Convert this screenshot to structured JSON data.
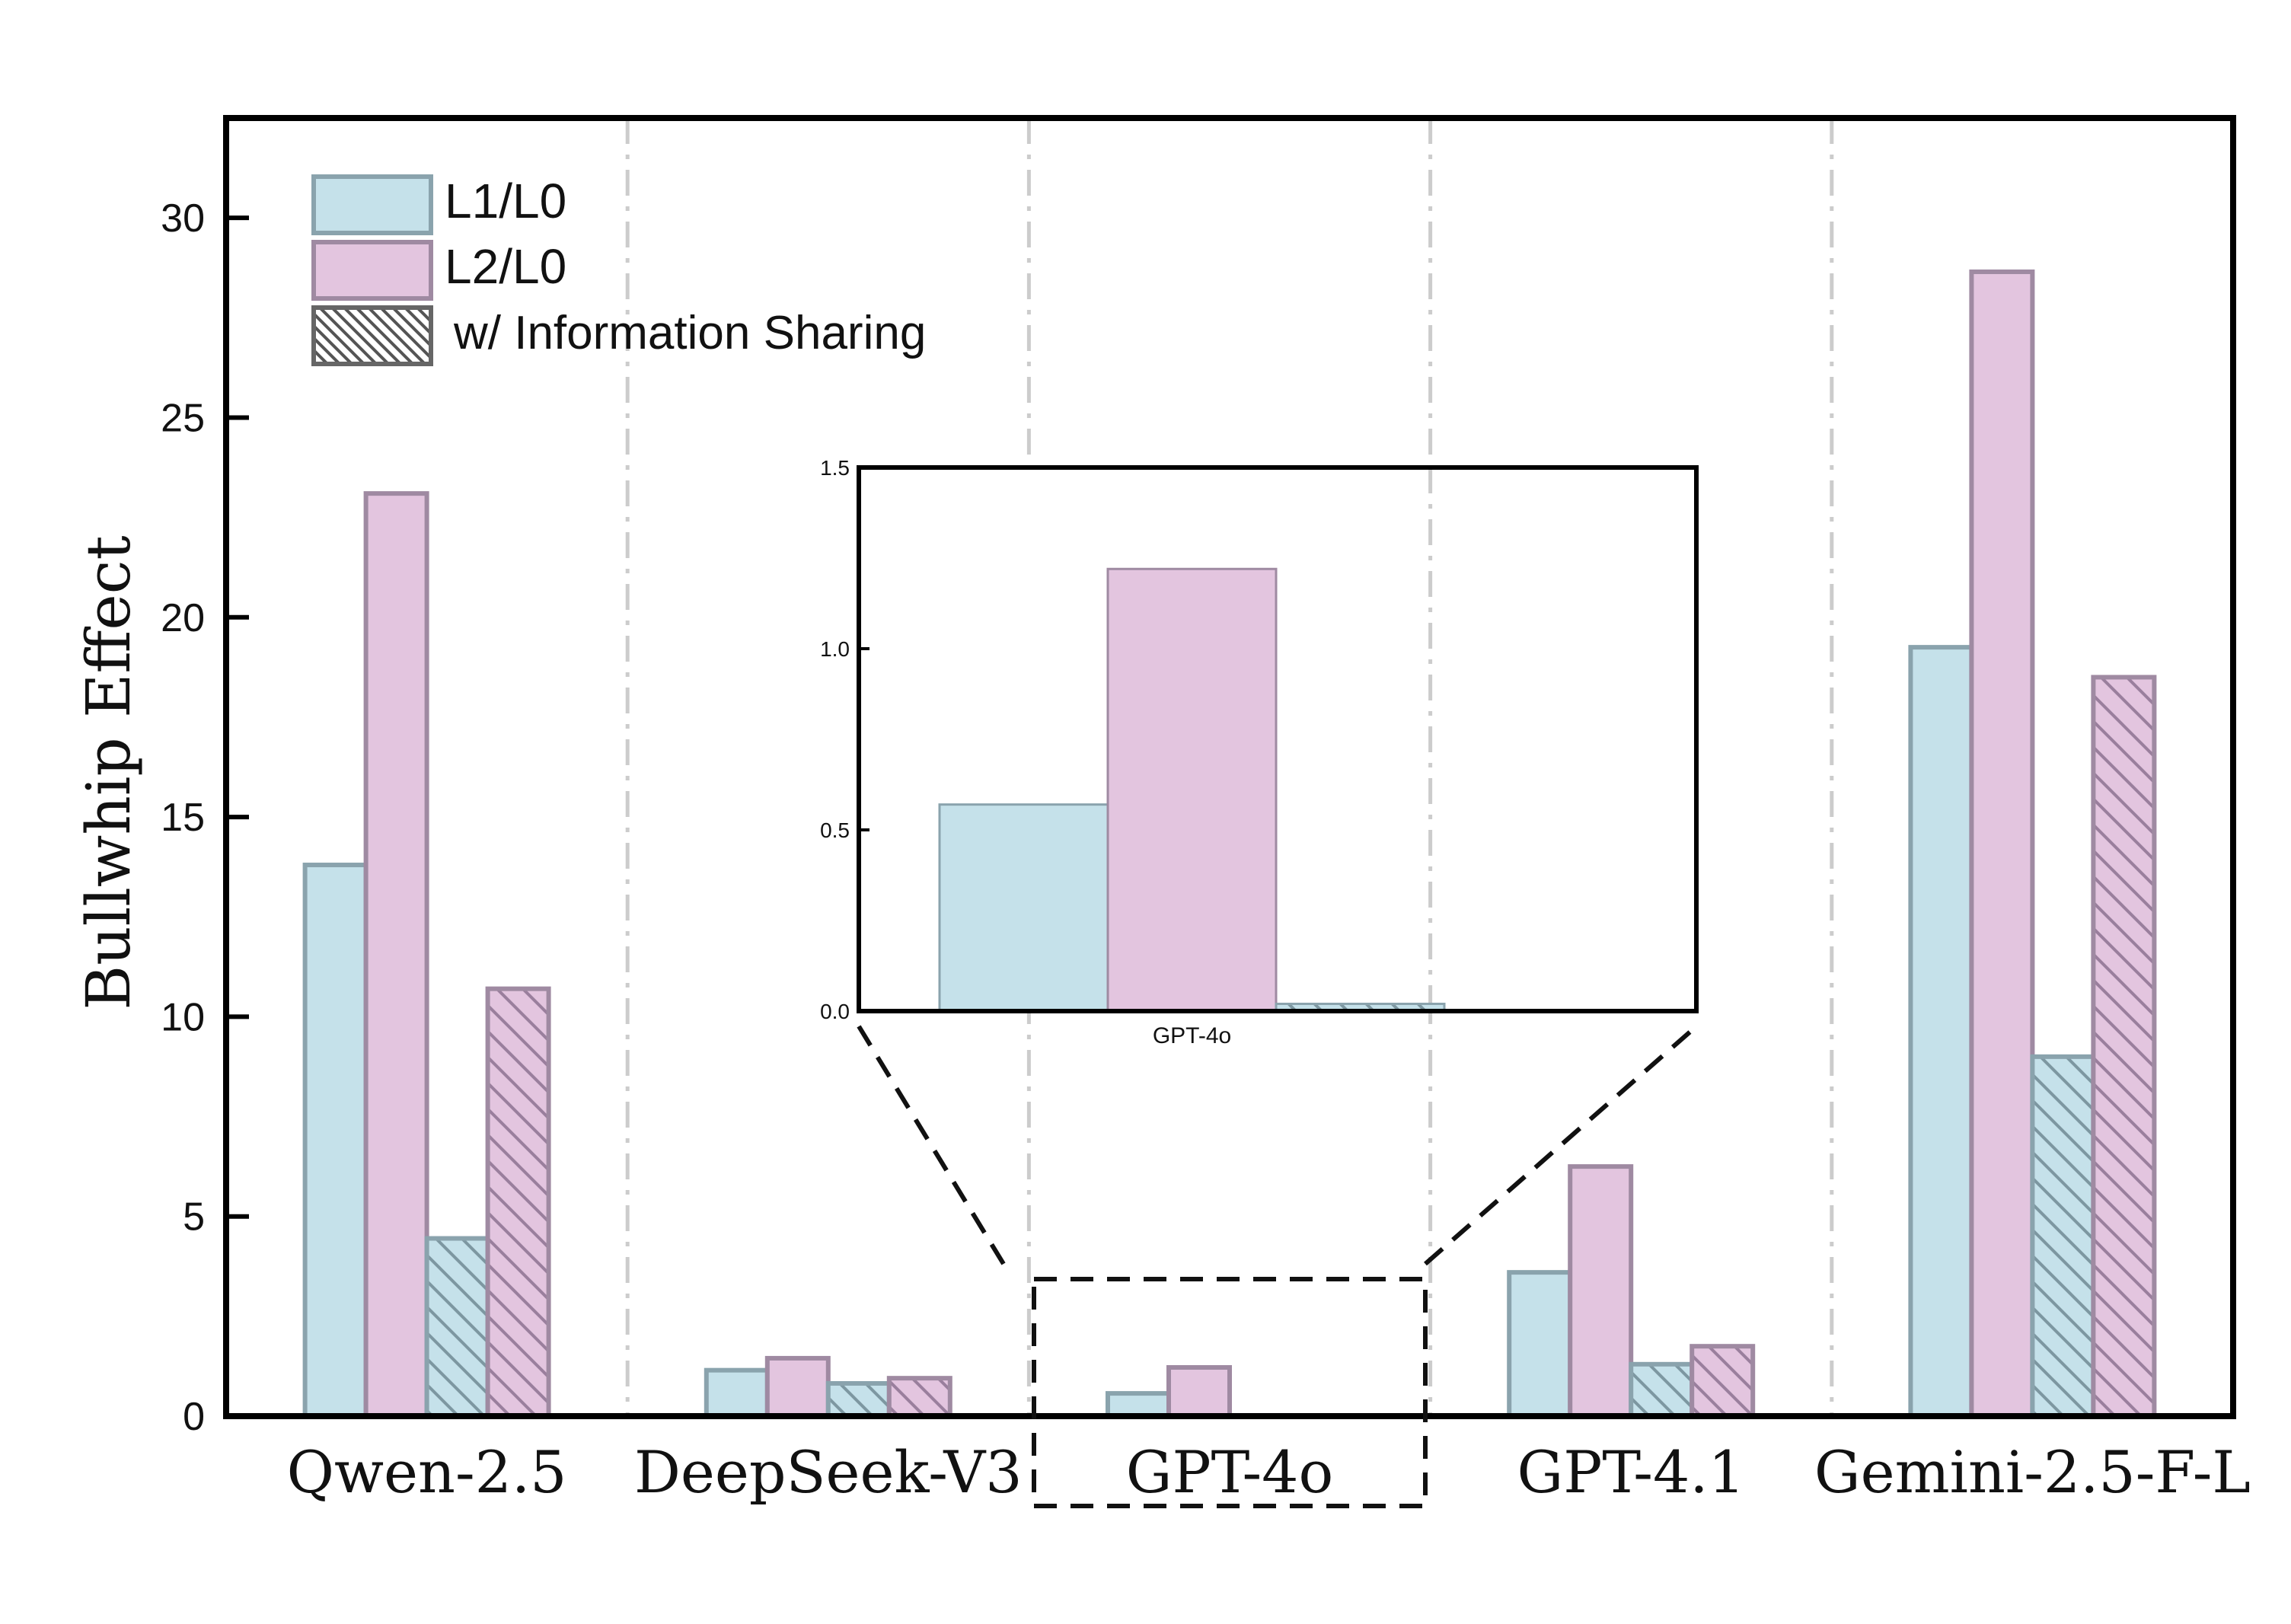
{
  "chart_data": {
    "type": "bar",
    "ylabel": "Bullwhip Effect",
    "ylim": [
      0,
      32.5
    ],
    "yticks": [
      0,
      5,
      10,
      15,
      20,
      25,
      30
    ],
    "categories": [
      "Qwen-2.5",
      "DeepSeek-V3",
      "GPT-4o",
      "GPT-4.1",
      "Gemini-2.5-F-L"
    ],
    "series": [
      {
        "name": "L1/L0",
        "fill": "#c5e1ea",
        "stroke": "#8aa3ad",
        "hatched": false,
        "values": [
          13.8,
          1.15,
          0.57,
          3.6,
          19.25
        ]
      },
      {
        "name": "L2/L0",
        "fill": "#e3c5df",
        "stroke": "#9f8aa2",
        "hatched": false,
        "values": [
          23.1,
          1.45,
          1.22,
          6.25,
          28.65
        ]
      },
      {
        "name": "L1/L0 w/ Information Sharing",
        "fill": "#c5e1ea",
        "stroke": "#8aa3ad",
        "hatched": true,
        "values": [
          4.45,
          0.82,
          0.02,
          1.3,
          9.0
        ]
      },
      {
        "name": "L2/L0 w/ Information Sharing",
        "fill": "#e3c5df",
        "stroke": "#9f8aa2",
        "hatched": true,
        "values": [
          10.7,
          0.95,
          0.0,
          1.75,
          18.5
        ]
      }
    ],
    "legend": {
      "position": "top-left",
      "entries": [
        {
          "label": "L1/L0",
          "style": "L1/L0"
        },
        {
          "label": "L2/L0",
          "style": "L2/L0"
        },
        {
          "label": "w/ Information Sharing",
          "style": "hatch"
        }
      ]
    },
    "inset": {
      "category": "GPT-4o",
      "ylim": [
        0,
        1.5
      ],
      "yticks": [
        "0.0",
        "0.5",
        "1.0",
        "1.5"
      ],
      "xlabel": "GPT-4o",
      "values": [
        0.57,
        1.22,
        0.02
      ]
    }
  }
}
